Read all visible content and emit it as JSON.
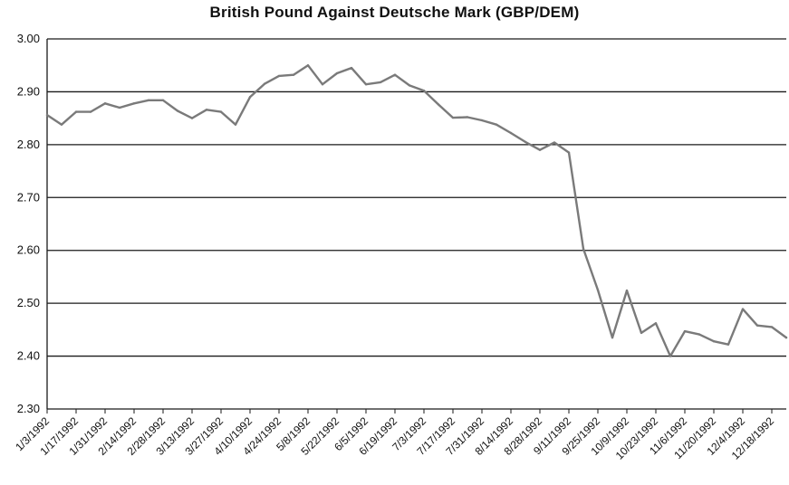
{
  "chart_data": {
    "type": "line",
    "title": "British Pound Against Deutsche Mark (GBP/DEM)",
    "xlabel": "",
    "ylabel": "",
    "ylim": [
      2.3,
      3.0
    ],
    "yticks": [
      "3.00",
      "2.90",
      "2.80",
      "2.70",
      "2.60",
      "2.50",
      "2.40",
      "2.30"
    ],
    "grid": "horizontal",
    "line_color": "#7a7a7a",
    "xtick_labels": [
      "1/3/1992",
      "1/17/1992",
      "1/31/1992",
      "2/14/1992",
      "2/28/1992",
      "3/13/1992",
      "3/27/1992",
      "4/10/1992",
      "4/24/1992",
      "5/8/1992",
      "5/22/1992",
      "6/5/1992",
      "6/19/1992",
      "7/3/1992",
      "7/17/1992",
      "7/31/1992",
      "8/14/1992",
      "8/28/1992",
      "9/11/1992",
      "9/25/1992",
      "10/9/1992",
      "10/23/1992",
      "11/6/1992",
      "11/20/1992",
      "12/4/1992",
      "12/18/1992"
    ],
    "x": [
      "1/3/1992",
      "1/10/1992",
      "1/17/1992",
      "1/24/1992",
      "1/31/1992",
      "2/7/1992",
      "2/14/1992",
      "2/21/1992",
      "2/28/1992",
      "3/6/1992",
      "3/13/1992",
      "3/20/1992",
      "3/27/1992",
      "4/3/1992",
      "4/10/1992",
      "4/17/1992",
      "4/24/1992",
      "5/1/1992",
      "5/8/1992",
      "5/15/1992",
      "5/22/1992",
      "5/29/1992",
      "6/5/1992",
      "6/12/1992",
      "6/19/1992",
      "6/26/1992",
      "7/3/1992",
      "7/10/1992",
      "7/17/1992",
      "7/24/1992",
      "7/31/1992",
      "8/7/1992",
      "8/14/1992",
      "8/21/1992",
      "8/28/1992",
      "9/4/1992",
      "9/11/1992",
      "9/18/1992",
      "9/25/1992",
      "10/2/1992",
      "10/9/1992",
      "10/16/1992",
      "10/23/1992",
      "10/30/1992",
      "11/6/1992",
      "11/13/1992",
      "11/20/1992",
      "11/27/1992",
      "12/4/1992",
      "12/11/1992",
      "12/18/1992",
      "12/25/1992"
    ],
    "values": [
      2.856,
      2.838,
      2.862,
      2.862,
      2.878,
      2.87,
      2.878,
      2.884,
      2.884,
      2.864,
      2.85,
      2.866,
      2.862,
      2.838,
      2.89,
      2.915,
      2.93,
      2.932,
      2.95,
      2.914,
      2.935,
      2.945,
      2.914,
      2.918,
      2.932,
      2.912,
      2.902,
      2.876,
      2.851,
      2.852,
      2.846,
      2.838,
      2.822,
      2.805,
      2.79,
      2.804,
      2.785,
      2.603,
      2.525,
      2.435,
      2.524,
      2.444,
      2.462,
      2.4,
      2.447,
      2.441,
      2.428,
      2.422,
      2.489,
      2.458,
      2.455,
      2.435
    ]
  }
}
